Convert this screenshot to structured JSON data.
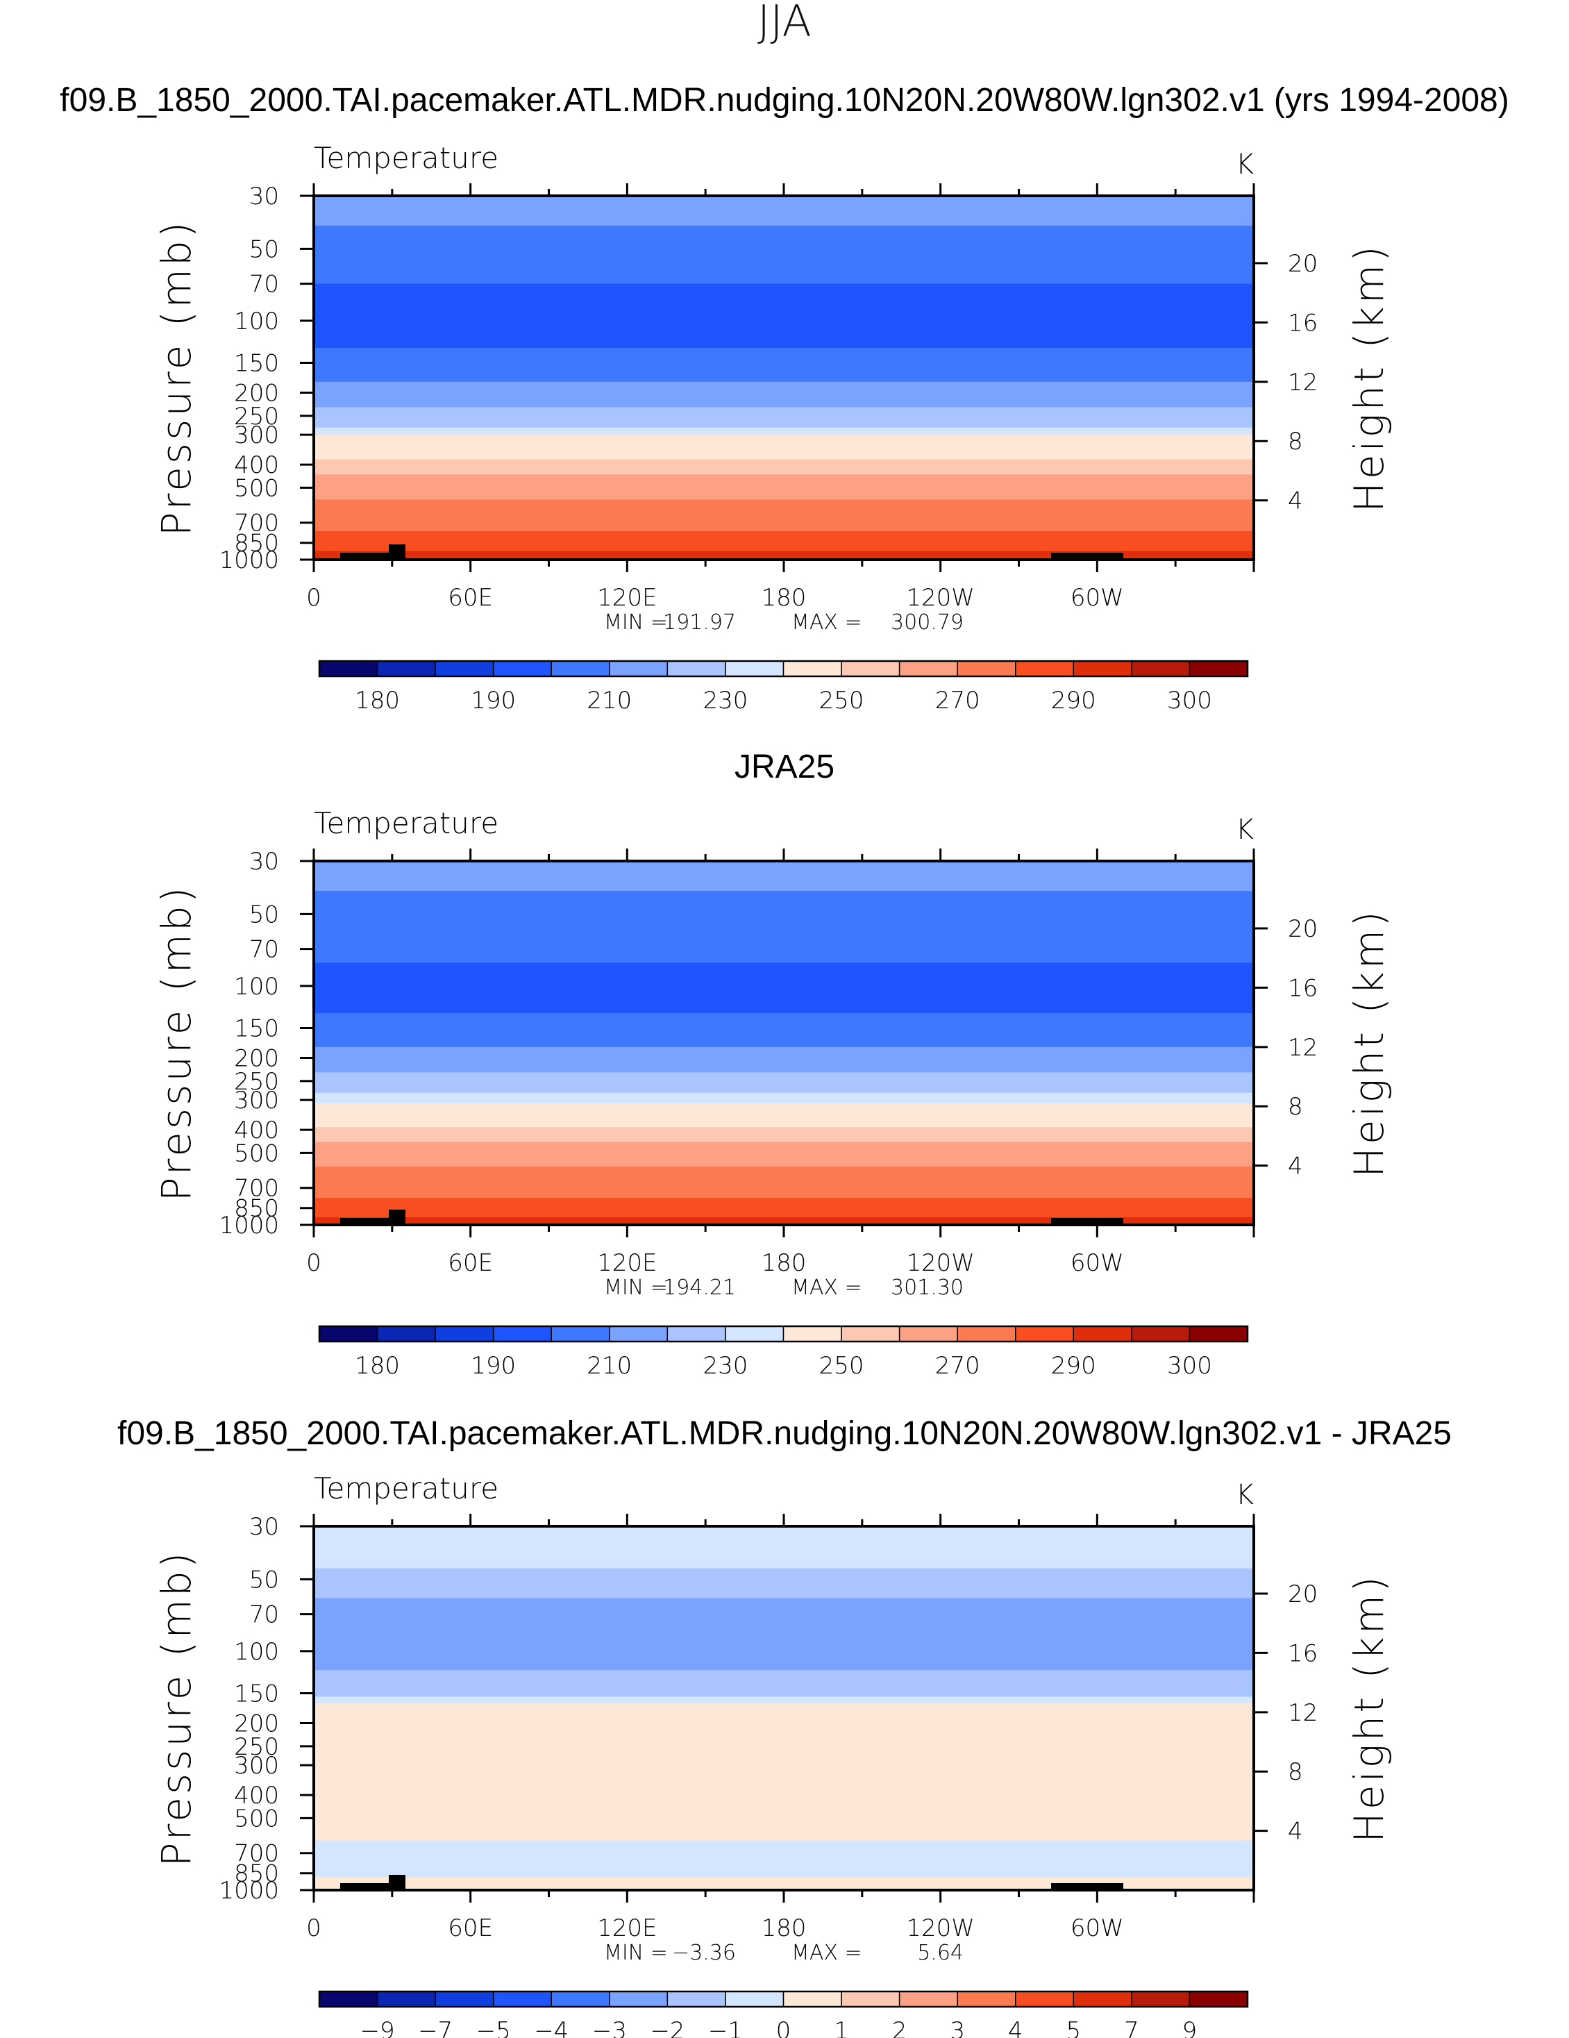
{
  "figure": {
    "title": "JJA"
  },
  "chart_data": [
    {
      "type": "heatmap",
      "title": "f09.B_1850_2000.TAI.pacemaker.ATL.MDR.nudging.10N20N.20W80W.lgn302.v1 (yrs 1994-2008)",
      "variable_label": "Temperature",
      "units": "K",
      "ylabel": "Pressure (mb)",
      "ylabel_right": "Height (km)",
      "x_ticks": [
        "0",
        "60E",
        "120E",
        "180",
        "120W",
        "60W"
      ],
      "y_ticks": [
        "30",
        "50",
        "70",
        "100",
        "150",
        "200",
        "250",
        "300",
        "400",
        "500",
        "700",
        "850",
        "1000"
      ],
      "y_ticks_right": [
        "20",
        "16",
        "12",
        "8",
        "4"
      ],
      "stats": {
        "min_label": "MIN =",
        "min": "191.97",
        "max_label": "MAX =",
        "max": "300.79"
      },
      "colorbar": {
        "labels": [
          "180",
          "190",
          "210",
          "230",
          "250",
          "270",
          "290",
          "300"
        ],
        "levels": [
          180,
          185,
          190,
          200,
          210,
          220,
          230,
          240,
          250,
          260,
          270,
          280,
          290,
          295,
          300
        ],
        "colors": [
          "#08066f",
          "#0b26b4",
          "#0f3fe0",
          "#1e55ff",
          "#3e78ff",
          "#7aa2ff",
          "#aac4ff",
          "#d3e5ff",
          "#fde8d8",
          "#fdc8b2",
          "#fca184",
          "#fb7a52",
          "#f84e21",
          "#e02e0a",
          "#b81b0a",
          "#8b0000"
        ]
      },
      "layers_by_pressure_mb": [
        {
          "from": 30,
          "to": 40,
          "value": 215
        },
        {
          "from": 40,
          "to": 70,
          "value": 205
        },
        {
          "from": 70,
          "to": 130,
          "value": 195
        },
        {
          "from": 130,
          "to": 180,
          "value": 205
        },
        {
          "from": 180,
          "to": 230,
          "value": 215
        },
        {
          "from": 230,
          "to": 280,
          "value": 225
        },
        {
          "from": 280,
          "to": 300,
          "value": 235
        },
        {
          "from": 300,
          "to": 380,
          "value": 245
        },
        {
          "from": 380,
          "to": 440,
          "value": 255
        },
        {
          "from": 440,
          "to": 560,
          "value": 265
        },
        {
          "from": 560,
          "to": 760,
          "value": 275
        },
        {
          "from": 760,
          "to": 920,
          "value": 285
        },
        {
          "from": 920,
          "to": 1000,
          "value": 292
        }
      ]
    },
    {
      "type": "heatmap",
      "title": "JRA25",
      "variable_label": "Temperature",
      "units": "K",
      "ylabel": "Pressure (mb)",
      "ylabel_right": "Height (km)",
      "x_ticks": [
        "0",
        "60E",
        "120E",
        "180",
        "120W",
        "60W"
      ],
      "y_ticks": [
        "30",
        "50",
        "70",
        "100",
        "150",
        "200",
        "250",
        "300",
        "400",
        "500",
        "700",
        "850",
        "1000"
      ],
      "y_ticks_right": [
        "20",
        "16",
        "12",
        "8",
        "4"
      ],
      "stats": {
        "min_label": "MIN =",
        "min": "194.21",
        "max_label": "MAX =",
        "max": "301.30"
      },
      "colorbar": {
        "labels": [
          "180",
          "190",
          "210",
          "230",
          "250",
          "270",
          "290",
          "300"
        ],
        "levels": [
          180,
          185,
          190,
          200,
          210,
          220,
          230,
          240,
          250,
          260,
          270,
          280,
          290,
          295,
          300
        ],
        "colors": [
          "#08066f",
          "#0b26b4",
          "#0f3fe0",
          "#1e55ff",
          "#3e78ff",
          "#7aa2ff",
          "#aac4ff",
          "#d3e5ff",
          "#fde8d8",
          "#fdc8b2",
          "#fca184",
          "#fb7a52",
          "#f84e21",
          "#e02e0a",
          "#b81b0a",
          "#8b0000"
        ]
      },
      "layers_by_pressure_mb": [
        {
          "from": 30,
          "to": 40,
          "value": 215
        },
        {
          "from": 40,
          "to": 80,
          "value": 205
        },
        {
          "from": 80,
          "to": 130,
          "value": 195
        },
        {
          "from": 130,
          "to": 180,
          "value": 205
        },
        {
          "from": 180,
          "to": 230,
          "value": 215
        },
        {
          "from": 230,
          "to": 280,
          "value": 225
        },
        {
          "from": 280,
          "to": 310,
          "value": 235
        },
        {
          "from": 310,
          "to": 390,
          "value": 245
        },
        {
          "from": 390,
          "to": 450,
          "value": 255
        },
        {
          "from": 450,
          "to": 570,
          "value": 265
        },
        {
          "from": 570,
          "to": 770,
          "value": 275
        },
        {
          "from": 770,
          "to": 930,
          "value": 285
        },
        {
          "from": 930,
          "to": 1000,
          "value": 292
        }
      ]
    },
    {
      "type": "heatmap",
      "title": "f09.B_1850_2000.TAI.pacemaker.ATL.MDR.nudging.10N20N.20W80W.lgn302.v1 - JRA25",
      "variable_label": "Temperature",
      "units": "K",
      "ylabel": "Pressure (mb)",
      "ylabel_right": "Height (km)",
      "x_ticks": [
        "0",
        "60E",
        "120E",
        "180",
        "120W",
        "60W"
      ],
      "y_ticks": [
        "30",
        "50",
        "70",
        "100",
        "150",
        "200",
        "250",
        "300",
        "400",
        "500",
        "700",
        "850",
        "1000"
      ],
      "y_ticks_right": [
        "20",
        "16",
        "12",
        "8",
        "4"
      ],
      "stats": {
        "min_label": "MIN =",
        "min": "−3.36",
        "max_label": "MAX =",
        "max": "5.64"
      },
      "colorbar": {
        "labels": [
          "−9",
          "−7",
          "−5",
          "−4",
          "−3",
          "−2",
          "−1",
          "0",
          "1",
          "2",
          "3",
          "4",
          "5",
          "7",
          "9"
        ],
        "levels": [
          -9,
          -7,
          -5,
          -4,
          -3,
          -2,
          -1,
          0,
          1,
          2,
          3,
          4,
          5,
          7,
          9
        ],
        "colors": [
          "#08066f",
          "#0b26b4",
          "#0f3fe0",
          "#1e55ff",
          "#3e78ff",
          "#7aa2ff",
          "#aac4ff",
          "#d3e5ff",
          "#fde8d8",
          "#fdc8b2",
          "#fca184",
          "#fb7a52",
          "#f84e21",
          "#e02e0a",
          "#b81b0a",
          "#8b0000"
        ]
      },
      "layers_by_pressure_mb": [
        {
          "from": 30,
          "to": 45,
          "value": -0.5
        },
        {
          "from": 45,
          "to": 60,
          "value": -1.5
        },
        {
          "from": 60,
          "to": 120,
          "value": -2.5
        },
        {
          "from": 120,
          "to": 155,
          "value": -1.5
        },
        {
          "from": 155,
          "to": 165,
          "value": -0.5
        },
        {
          "from": 165,
          "to": 620,
          "value": 0.5
        },
        {
          "from": 620,
          "to": 880,
          "value": -0.5
        },
        {
          "from": 880,
          "to": 1000,
          "value": 0.5
        }
      ]
    }
  ]
}
